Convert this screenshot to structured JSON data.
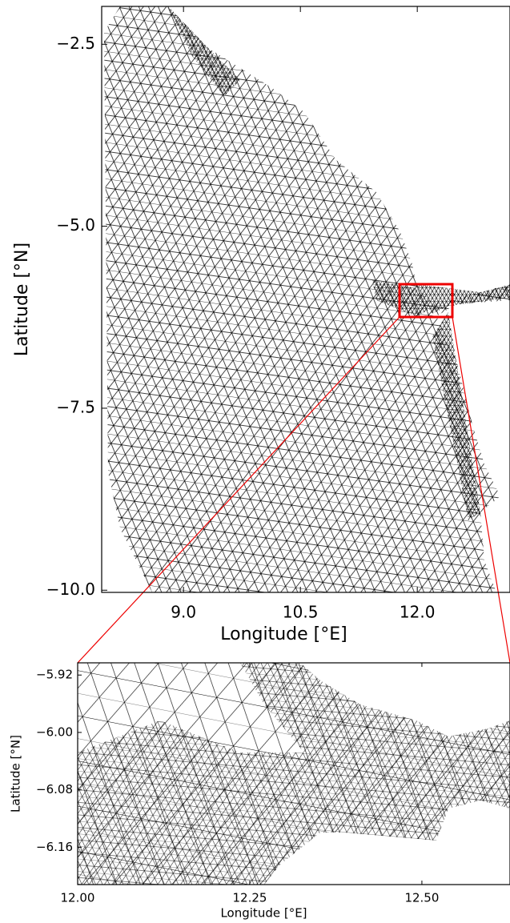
{
  "chart_data": [
    {
      "type": "mesh",
      "xlabel": "Longitude [°E]",
      "ylabel": "Latitude [°N]",
      "xlim": [
        7.95,
        13.19
      ],
      "ylim": [
        -10.03,
        -1.98
      ],
      "xticks": [
        {
          "value": 9,
          "label": "9.0"
        },
        {
          "value": 10.5,
          "label": "10.5"
        },
        {
          "value": 12,
          "label": "12.0"
        }
      ],
      "yticks": [
        {
          "value": -2.5,
          "label": "−2.5"
        },
        {
          "value": -5,
          "label": "−5.0"
        },
        {
          "value": -7.5,
          "label": "−7.5"
        },
        {
          "value": -10,
          "label": "−10.0"
        }
      ]
    },
    {
      "type": "mesh",
      "xlabel": "Longitude [°E]",
      "ylabel": "Latitude [°N]",
      "xlim": [
        12.0,
        12.628
      ],
      "ylim": [
        -6.212,
        -5.903
      ],
      "xticks": [
        {
          "value": 12,
          "label": "12.00"
        },
        {
          "value": 12.25,
          "label": "12.25"
        },
        {
          "value": 12.5,
          "label": "12.50"
        }
      ],
      "yticks": [
        {
          "value": -5.92,
          "label": "−5.92"
        },
        {
          "value": -6,
          "label": "−6.00"
        },
        {
          "value": -6.08,
          "label": "−6.08"
        },
        {
          "value": -6.16,
          "label": "−6.16"
        }
      ]
    }
  ]
}
